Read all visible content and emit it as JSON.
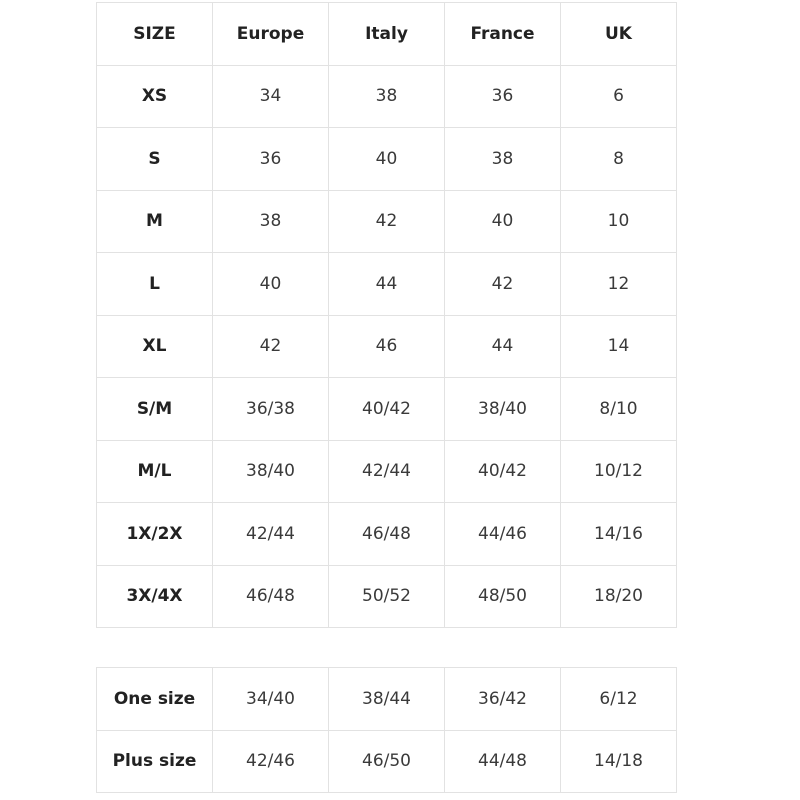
{
  "main_table": {
    "headers": [
      "SIZE",
      "Europe",
      "Italy",
      "France",
      "UK"
    ],
    "rows": [
      [
        "XS",
        "34",
        "38",
        "36",
        "6"
      ],
      [
        "S",
        "36",
        "40",
        "38",
        "8"
      ],
      [
        "M",
        "38",
        "42",
        "40",
        "10"
      ],
      [
        "L",
        "40",
        "44",
        "42",
        "12"
      ],
      [
        "XL",
        "42",
        "46",
        "44",
        "14"
      ],
      [
        "S/M",
        "36/38",
        "40/42",
        "38/40",
        "8/10"
      ],
      [
        "M/L",
        "38/40",
        "42/44",
        "40/42",
        "10/12"
      ],
      [
        "1X/2X",
        "42/44",
        "46/48",
        "44/46",
        "14/16"
      ],
      [
        "3X/4X",
        "46/48",
        "50/52",
        "48/50",
        "18/20"
      ]
    ]
  },
  "extra_table": {
    "rows": [
      [
        "One size",
        "34/40",
        "38/44",
        "36/42",
        "6/12"
      ],
      [
        "Plus size",
        "42/46",
        "46/50",
        "44/48",
        "14/18"
      ]
    ]
  }
}
